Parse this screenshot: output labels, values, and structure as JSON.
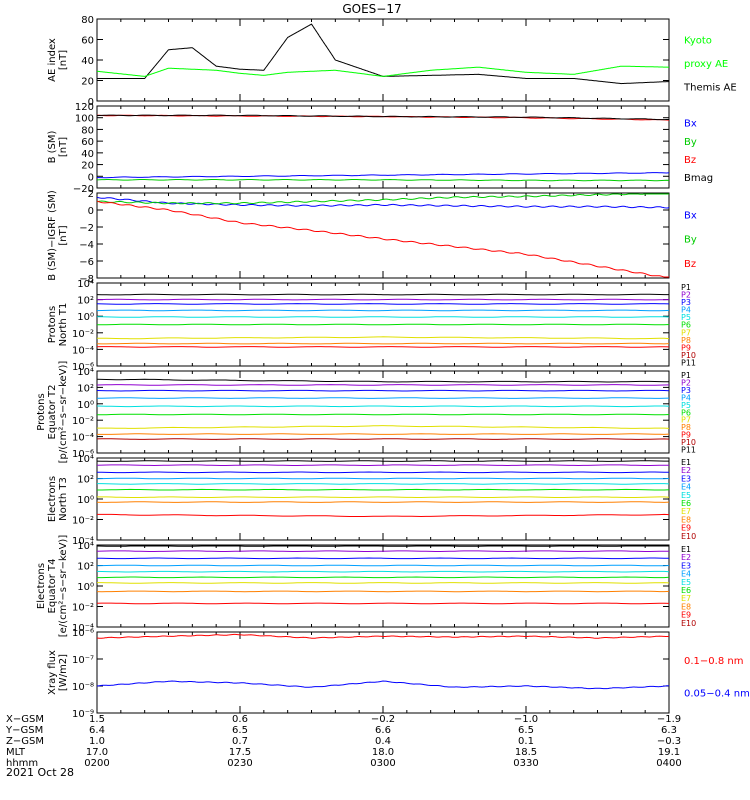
{
  "title": "GOES−17",
  "date": "2021 Oct 28",
  "colors": {
    "black": "#000000",
    "blue": "#0000ff",
    "green": "#00ff00",
    "red": "#ff0000",
    "brightblue": "#00a0ff",
    "cyan": "#00e0e0",
    "yellow": "#e0e000",
    "orange": "#ff8000",
    "purple": "#9000d0",
    "darkred": "#b00000",
    "darkblue": "#000090"
  },
  "panels": [
    {
      "key": "ae",
      "ylabel": [
        "AE index",
        "[nT]"
      ],
      "ticks": [
        "0",
        "20",
        "40",
        "60",
        "80"
      ],
      "legend": [
        {
          "text": "Kyoto",
          "color": "#00ff00"
        },
        {
          "text": "proxy AE",
          "color": "#00ff00"
        },
        {
          "text": "Themis AE",
          "color": "#000000"
        }
      ]
    },
    {
      "key": "bsm",
      "ylabel": [
        "B (SM)",
        "[nT]"
      ],
      "ticks": [
        "−20",
        "0",
        "20",
        "40",
        "60",
        "80",
        "100",
        "120"
      ],
      "legend": [
        {
          "text": "Bx",
          "color": "#0000ff"
        },
        {
          "text": "By",
          "color": "#00cc00"
        },
        {
          "text": "Bz",
          "color": "#ff0000"
        },
        {
          "text": "Bmag",
          "color": "#000000"
        }
      ]
    },
    {
      "key": "bigrf",
      "ylabel": [
        "B (SM)−IGRF (SM)",
        "[nT]"
      ],
      "ticks": [
        "−8",
        "−6",
        "−4",
        "−2",
        "0",
        "2"
      ],
      "legend": [
        {
          "text": "Bx",
          "color": "#0000ff"
        },
        {
          "text": "By",
          "color": "#00cc00"
        },
        {
          "text": "Bz",
          "color": "#ff0000"
        }
      ]
    },
    {
      "key": "pt1",
      "ylabel": [
        "Protons",
        "North T1"
      ],
      "ticks": [
        "10⁻⁶",
        "10⁻⁴",
        "10⁻²",
        "10⁰",
        "10²",
        "10⁴"
      ],
      "channels": [
        "P1",
        "P2",
        "P3",
        "P4",
        "P5",
        "P6",
        "P7",
        "P8",
        "P9",
        "P10",
        "P11"
      ]
    },
    {
      "key": "pt2",
      "ylabel": [
        "Protons",
        "Equator T2",
        "[p/(cm²−s−sr−keV)]"
      ],
      "ticks": [
        "10⁻⁶",
        "10⁻⁴",
        "10⁻²",
        "10⁰",
        "10²",
        "10⁴"
      ],
      "channels": [
        "P1",
        "P2",
        "P3",
        "P4",
        "P5",
        "P6",
        "P7",
        "P8",
        "P9",
        "P10",
        "P11"
      ]
    },
    {
      "key": "et3",
      "ylabel": [
        "Electrons",
        "North T3"
      ],
      "ticks": [
        "10⁻⁴",
        "10⁻²",
        "10⁰",
        "10²",
        "10⁴"
      ],
      "channels": [
        "E1",
        "E2",
        "E3",
        "E4",
        "E5",
        "E6",
        "E7",
        "E8",
        "E9",
        "E10"
      ]
    },
    {
      "key": "et4",
      "ylabel": [
        "Electrons",
        "Equator T4",
        "[e/(cm²−s−sr−keV)]"
      ],
      "ticks": [
        "10⁻⁴",
        "10⁻²",
        "10⁰",
        "10²",
        "10⁴"
      ],
      "channels": [
        "E1",
        "E2",
        "E3",
        "E4",
        "E5",
        "E6",
        "E7",
        "E8",
        "E9",
        "E10"
      ]
    },
    {
      "key": "xray",
      "ylabel": [
        "Xray flux",
        "[W/m2]"
      ],
      "ticks": [
        "10⁻⁹",
        "10⁻⁸",
        "10⁻⁷",
        "10⁻⁶"
      ],
      "legend": [
        {
          "text": "0.1−0.8 nm",
          "color": "#ff0000"
        },
        {
          "text": "0.05−0.4 nm",
          "color": "#0000ff"
        }
      ]
    }
  ],
  "channel_colors": {
    "P": [
      "#000000",
      "#9000d0",
      "#0000ff",
      "#00a0ff",
      "#00e0e0",
      "#00e000",
      "#e0e000",
      "#ff8000",
      "#ff0000",
      "#b00000",
      "#000000"
    ],
    "E": [
      "#000000",
      "#9000d0",
      "#0000ff",
      "#00a0ff",
      "#00e0e0",
      "#00e000",
      "#e0e000",
      "#ff8000",
      "#ff0000",
      "#b00000"
    ]
  },
  "xaxis": {
    "rows": [
      {
        "label": "X−GSM",
        "values": [
          "1.5",
          "0.6",
          "−0.2",
          "−1.0",
          "−1.9"
        ]
      },
      {
        "label": "Y−GSM",
        "values": [
          "6.4",
          "6.5",
          "6.6",
          "6.5",
          "6.3"
        ]
      },
      {
        "label": "Z−GSM",
        "values": [
          "1.0",
          "0.7",
          "0.4",
          "0.1",
          "−0.3"
        ]
      },
      {
        "label": "MLT",
        "values": [
          "17.0",
          "17.5",
          "18.0",
          "18.5",
          "19.1"
        ]
      },
      {
        "label": "hhmm",
        "values": [
          "0200",
          "0230",
          "0300",
          "0330",
          "0400"
        ]
      }
    ]
  },
  "chart_data": [
    {
      "type": "line",
      "title": "GOES−17",
      "ylabel": "AE index [nT]",
      "ylim": [
        0,
        80
      ],
      "x": [
        "0200",
        "0210",
        "0215",
        "0220",
        "0225",
        "0230",
        "0235",
        "0240",
        "0245",
        "0250",
        "0300",
        "0310",
        "0320",
        "0330",
        "0340",
        "0350",
        "0400"
      ],
      "series": [
        {
          "name": "Themis AE",
          "color": "#000000",
          "values": [
            22,
            22,
            50,
            52,
            34,
            31,
            30,
            62,
            75,
            40,
            24,
            25,
            26,
            22,
            22,
            17,
            19
          ]
        },
        {
          "name": "Kyoto proxy AE",
          "color": "#00ff00",
          "values": [
            29,
            24,
            32,
            31,
            30,
            27,
            25,
            28,
            29,
            30,
            24,
            30,
            33,
            28,
            26,
            34,
            33
          ]
        }
      ]
    },
    {
      "type": "line",
      "ylabel": "B (SM) [nT]",
      "ylim": [
        -20,
        120
      ],
      "x": [
        "0200",
        "0230",
        "0300",
        "0330",
        "0400"
      ],
      "series": [
        {
          "name": "Bx",
          "color": "#0000ff",
          "values": [
            -2,
            0,
            2,
            4,
            6
          ]
        },
        {
          "name": "By",
          "color": "#00cc00",
          "values": [
            -6,
            -6,
            -6,
            -7,
            -7
          ]
        },
        {
          "name": "Bz",
          "color": "#ff0000",
          "values": [
            104,
            103,
            102,
            100,
            96
          ]
        },
        {
          "name": "Bmag",
          "color": "#000000",
          "values": [
            104,
            104,
            102,
            101,
            97
          ]
        }
      ]
    },
    {
      "type": "line",
      "ylabel": "B (SM)−IGRF (SM) [nT]",
      "ylim": [
        -8,
        2
      ],
      "x": [
        "0200",
        "0215",
        "0230",
        "0245",
        "0300",
        "0315",
        "0330",
        "0345",
        "0400"
      ],
      "series": [
        {
          "name": "Bx",
          "color": "#0000ff",
          "values": [
            1.5,
            0.8,
            0.6,
            0.5,
            0.6,
            0.5,
            0.4,
            0.4,
            0.3
          ]
        },
        {
          "name": "By",
          "color": "#00cc00",
          "values": [
            1.0,
            0.8,
            0.8,
            1.0,
            1.2,
            1.5,
            1.6,
            1.8,
            2.0
          ]
        },
        {
          "name": "Bz",
          "color": "#ff0000",
          "values": [
            1.0,
            0.0,
            -1.5,
            -2.4,
            -3.4,
            -4.3,
            -5.2,
            -6.6,
            -8.0
          ]
        }
      ]
    },
    {
      "type": "line",
      "ylabel": "Protons North T1",
      "yscale": "log",
      "ylim": [
        1e-06,
        10000.0
      ],
      "x": [
        "0200",
        "0300",
        "0400"
      ],
      "series": [
        {
          "name": "P1",
          "values": [
            400,
            400,
            400
          ]
        },
        {
          "name": "P2",
          "values": [
            100,
            100,
            100
          ]
        },
        {
          "name": "P3",
          "values": [
            30,
            30,
            30
          ]
        },
        {
          "name": "P4",
          "values": [
            5,
            5,
            5
          ]
        },
        {
          "name": "P5",
          "values": [
            0.8,
            0.8,
            0.8
          ]
        },
        {
          "name": "P6",
          "values": [
            0.1,
            0.1,
            0.1
          ]
        },
        {
          "name": "P7",
          "values": [
            0.002,
            0.003,
            0.002
          ]
        },
        {
          "name": "P8",
          "values": [
            0.0005,
            0.0005,
            0.0005
          ]
        },
        {
          "name": "P9",
          "values": [
            0.0002,
            0.0002,
            0.0002
          ]
        }
      ]
    },
    {
      "type": "line",
      "ylabel": "Protons Equator T2 [p/(cm²−s−sr−keV)]",
      "yscale": "log",
      "ylim": [
        1e-06,
        10000.0
      ],
      "x": [
        "0200",
        "0300",
        "0400"
      ],
      "series": [
        {
          "name": "P1",
          "values": [
            1000,
            500,
            500
          ]
        },
        {
          "name": "P2",
          "values": [
            200,
            200,
            200
          ]
        },
        {
          "name": "P3",
          "values": [
            40,
            40,
            40
          ]
        },
        {
          "name": "P4",
          "values": [
            5,
            5,
            5
          ]
        },
        {
          "name": "P5",
          "values": [
            0.5,
            0.5,
            0.5
          ]
        },
        {
          "name": "P6",
          "values": [
            0.05,
            0.05,
            0.05
          ]
        },
        {
          "name": "P7",
          "values": [
            0.001,
            0.002,
            0.001
          ]
        },
        {
          "name": "P8",
          "values": [
            0.0002,
            0.0002,
            0.0002
          ]
        },
        {
          "name": "P10",
          "values": [
            5e-05,
            5e-05,
            5e-05
          ]
        }
      ]
    },
    {
      "type": "line",
      "ylabel": "Electrons North T3",
      "yscale": "log",
      "ylim": [
        0.0001,
        10000.0
      ],
      "x": [
        "0200",
        "0300",
        "0400"
      ],
      "series": [
        {
          "name": "E1",
          "values": [
            5000,
            5000,
            5000
          ]
        },
        {
          "name": "E2",
          "values": [
            2000,
            2000,
            2000
          ]
        },
        {
          "name": "E3",
          "values": [
            400,
            400,
            400
          ]
        },
        {
          "name": "E4",
          "values": [
            100,
            100,
            100
          ]
        },
        {
          "name": "E5",
          "values": [
            30,
            30,
            30
          ]
        },
        {
          "name": "E6",
          "values": [
            8,
            8,
            8
          ]
        },
        {
          "name": "E7",
          "values": [
            1.5,
            1.5,
            1.5
          ]
        },
        {
          "name": "E8",
          "values": [
            0.5,
            0.5,
            0.5
          ]
        },
        {
          "name": "E9",
          "values": [
            0.03,
            0.02,
            0.03
          ]
        }
      ]
    },
    {
      "type": "line",
      "ylabel": "Electrons Equator T4 [e/(cm²−s−sr−keV)]",
      "yscale": "log",
      "ylim": [
        0.0001,
        10000.0
      ],
      "x": [
        "0200",
        "0300",
        "0400"
      ],
      "series": [
        {
          "name": "E1",
          "values": [
            8000,
            8000,
            8000
          ]
        },
        {
          "name": "E2",
          "values": [
            2500,
            2500,
            2500
          ]
        },
        {
          "name": "E3",
          "values": [
            500,
            500,
            500
          ]
        },
        {
          "name": "E4",
          "values": [
            100,
            100,
            100
          ]
        },
        {
          "name": "E5",
          "values": [
            25,
            25,
            25
          ]
        },
        {
          "name": "E6",
          "values": [
            7,
            7,
            7
          ]
        },
        {
          "name": "E7",
          "values": [
            2,
            2,
            2
          ]
        },
        {
          "name": "E8",
          "values": [
            0.3,
            0.3,
            0.3
          ]
        },
        {
          "name": "E9",
          "values": [
            0.02,
            0.02,
            0.02
          ]
        }
      ]
    },
    {
      "type": "line",
      "ylabel": "Xray flux [W/m2]",
      "yscale": "log",
      "ylim": [
        1e-09,
        1e-06
      ],
      "x": [
        "0200",
        "0215",
        "0230",
        "0245",
        "0300",
        "0315",
        "0330",
        "0345",
        "0400"
      ],
      "series": [
        {
          "name": "0.1−0.8 nm",
          "color": "#ff0000",
          "values": [
            6e-07,
            7e-07,
            8e-07,
            6e-07,
            7e-07,
            6.5e-07,
            7e-07,
            6e-07,
            7e-07
          ]
        },
        {
          "name": "0.05−0.4 nm",
          "color": "#0000ff",
          "values": [
            1e-08,
            1.5e-08,
            1.3e-08,
            9e-09,
            1.5e-08,
            9e-09,
            1e-08,
            8e-09,
            1e-08
          ]
        }
      ]
    }
  ]
}
